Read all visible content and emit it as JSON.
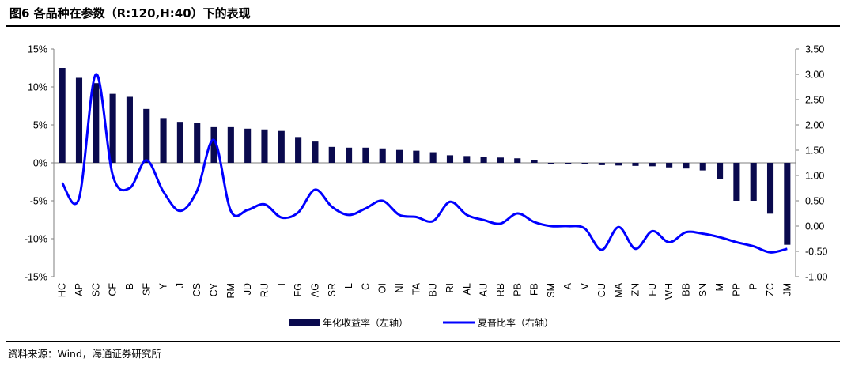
{
  "title": "图6  各品种在参数（R:120,H:40）下的表现",
  "source": "资料来源：Wind，海通证券研究所",
  "chart_data": {
    "type": "bar+line",
    "categories": [
      "HC",
      "AP",
      "SC",
      "CF",
      "B",
      "SF",
      "Y",
      "J",
      "CS",
      "CY",
      "RM",
      "JD",
      "RU",
      "I",
      "FG",
      "AG",
      "SR",
      "L",
      "C",
      "OI",
      "NI",
      "TA",
      "BU",
      "RI",
      "AL",
      "AU",
      "RB",
      "PB",
      "FB",
      "SM",
      "A",
      "V",
      "CU",
      "MA",
      "ZN",
      "FU",
      "WH",
      "BB",
      "SN",
      "M",
      "PP",
      "P",
      "ZC",
      "JM"
    ],
    "series": [
      {
        "name": "年化收益率（左轴）",
        "axis": "left",
        "type": "bar",
        "color": "#0a0a4e",
        "values": [
          12.5,
          11.2,
          10.5,
          9.1,
          8.7,
          7.1,
          5.9,
          5.4,
          5.3,
          4.7,
          4.7,
          4.5,
          4.4,
          4.2,
          3.4,
          2.8,
          2.1,
          2.0,
          2.0,
          1.9,
          1.7,
          1.6,
          1.4,
          1.0,
          0.9,
          0.8,
          0.7,
          0.6,
          0.4,
          -0.1,
          -0.15,
          -0.2,
          -0.3,
          -0.35,
          -0.4,
          -0.45,
          -0.6,
          -0.75,
          -1.0,
          -2.1,
          -5.0,
          -5.0,
          -6.7,
          -10.8
        ]
      },
      {
        "name": "夏普比率（右轴）",
        "axis": "right",
        "type": "line",
        "color": "#0000ff",
        "values": [
          0.85,
          0.55,
          3.0,
          1.0,
          0.75,
          1.3,
          0.68,
          0.3,
          0.7,
          1.7,
          0.3,
          0.32,
          0.43,
          0.17,
          0.27,
          0.72,
          0.38,
          0.22,
          0.35,
          0.5,
          0.22,
          0.18,
          0.1,
          0.48,
          0.22,
          0.12,
          0.05,
          0.25,
          0.08,
          0.0,
          0.0,
          -0.05,
          -0.47,
          -0.02,
          -0.45,
          -0.1,
          -0.32,
          -0.12,
          -0.15,
          -0.22,
          -0.32,
          -0.4,
          -0.52,
          -0.45
        ]
      }
    ],
    "left_axis": {
      "ylim": [
        -15,
        15
      ],
      "ticks": [
        -15,
        -10,
        -5,
        0,
        5,
        10,
        15
      ],
      "format": "percent"
    },
    "right_axis": {
      "ylim": [
        -1.0,
        3.5
      ],
      "ticks": [
        -1.0,
        -0.5,
        0.0,
        0.5,
        1.0,
        1.5,
        2.0,
        2.5,
        3.0,
        3.5
      ],
      "decimals": 2
    },
    "legend": [
      "年化收益率（左轴）",
      "夏普比率（右轴）"
    ],
    "legend_position": "bottom-center",
    "grid": false
  }
}
